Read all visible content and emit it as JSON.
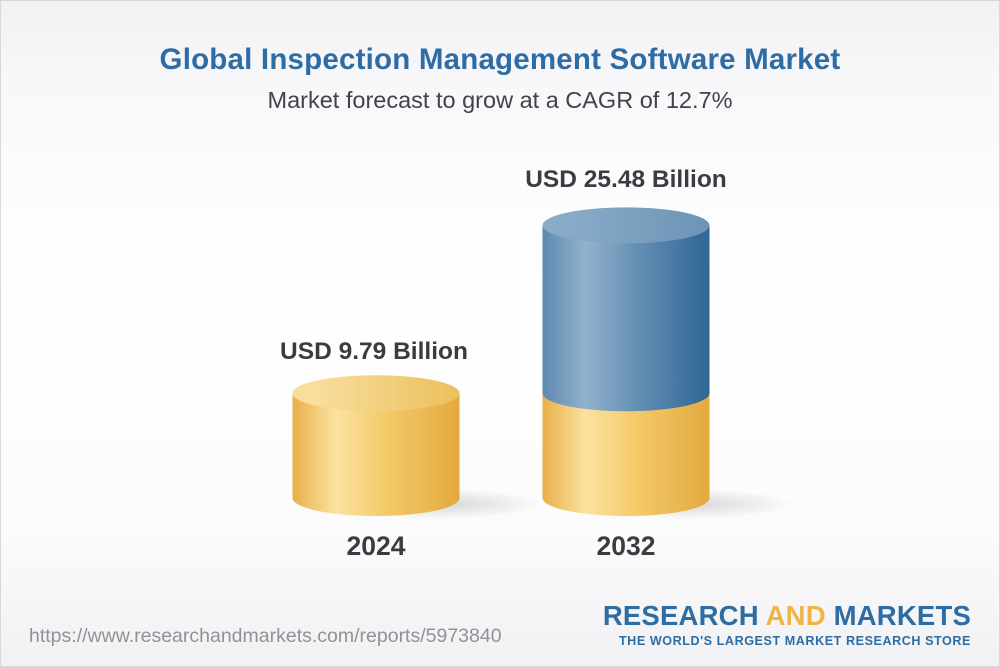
{
  "page": {
    "title": "Global Inspection Management Software Market",
    "subtitle": "Market forecast to grow at a CAGR of 12.7%"
  },
  "chart_data": {
    "type": "bar",
    "variant": "3d-stacked-cylinders",
    "title": "Global Inspection Management Software Market",
    "subtitle": "Market forecast to grow at a CAGR of 12.7%",
    "unit": "USD Billion",
    "cagr_percent": 12.7,
    "categories": [
      "2024",
      "2032"
    ],
    "values": [
      9.79,
      25.48
    ],
    "bars": [
      {
        "year": "2024",
        "label": "USD 9.79 Billion",
        "total": 9.79,
        "segments": [
          {
            "value": 9.79,
            "palette": "gold"
          }
        ]
      },
      {
        "year": "2032",
        "label": "USD 25.48 Billion",
        "total": 25.48,
        "segments": [
          {
            "value": 9.79,
            "palette": "gold"
          },
          {
            "value": 15.69,
            "palette": "blue"
          }
        ]
      }
    ],
    "palette": {
      "gold": {
        "body": [
          "#e7b04a",
          "#fce2a0",
          "#f4cb6b",
          "#e3a93e"
        ],
        "cap": [
          "#f8dd9b",
          "#ecc05c"
        ]
      },
      "blue": {
        "body": [
          "#5d89af",
          "#92b2cc",
          "#6691b5",
          "#2e6695"
        ],
        "cap": [
          "#88abc8",
          "#6d94b6"
        ]
      }
    },
    "legend": null,
    "grid": false
  },
  "footer": {
    "url": "https://www.researchandmarkets.com/reports/5973840",
    "logo": {
      "part1": "RESEARCH",
      "part2": "AND",
      "part3": "MARKETS",
      "tagline": "THE WORLD'S LARGEST MARKET RESEARCH STORE",
      "blue": "#2e6ca4",
      "gold": "#f0b442"
    }
  }
}
